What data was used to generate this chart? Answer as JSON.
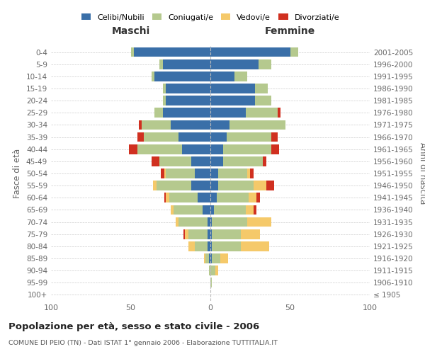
{
  "age_groups": [
    "100+",
    "95-99",
    "90-94",
    "85-89",
    "80-84",
    "75-79",
    "70-74",
    "65-69",
    "60-64",
    "55-59",
    "50-54",
    "45-49",
    "40-44",
    "35-39",
    "30-34",
    "25-29",
    "20-24",
    "15-19",
    "10-14",
    "5-9",
    "0-4"
  ],
  "birth_years": [
    "≤ 1905",
    "1906-1910",
    "1911-1915",
    "1916-1920",
    "1921-1925",
    "1926-1930",
    "1931-1935",
    "1936-1940",
    "1941-1945",
    "1946-1950",
    "1951-1955",
    "1956-1960",
    "1961-1965",
    "1966-1970",
    "1971-1975",
    "1976-1980",
    "1981-1985",
    "1986-1990",
    "1991-1995",
    "1996-2000",
    "2001-2005"
  ],
  "male": {
    "celibe": [
      0,
      0,
      0,
      1,
      2,
      2,
      2,
      5,
      8,
      12,
      10,
      12,
      18,
      20,
      25,
      30,
      28,
      28,
      35,
      30,
      48
    ],
    "coniugato": [
      0,
      0,
      1,
      2,
      8,
      12,
      18,
      18,
      18,
      22,
      18,
      20,
      28,
      22,
      18,
      5,
      2,
      2,
      2,
      2,
      2
    ],
    "vedovo": [
      0,
      0,
      0,
      1,
      4,
      2,
      2,
      2,
      2,
      2,
      1,
      0,
      0,
      0,
      0,
      0,
      0,
      0,
      0,
      0,
      0
    ],
    "divorziato": [
      0,
      0,
      0,
      0,
      0,
      1,
      0,
      0,
      1,
      0,
      2,
      5,
      5,
      4,
      2,
      0,
      0,
      0,
      0,
      0,
      0
    ]
  },
  "female": {
    "celibe": [
      0,
      0,
      0,
      1,
      1,
      1,
      1,
      2,
      4,
      5,
      5,
      8,
      8,
      10,
      12,
      22,
      28,
      28,
      15,
      30,
      50
    ],
    "coniugato": [
      0,
      1,
      3,
      5,
      18,
      18,
      22,
      20,
      20,
      22,
      18,
      25,
      30,
      28,
      35,
      20,
      10,
      8,
      8,
      8,
      5
    ],
    "vedovo": [
      0,
      0,
      2,
      5,
      18,
      12,
      15,
      5,
      5,
      8,
      2,
      0,
      0,
      0,
      0,
      0,
      0,
      0,
      0,
      0,
      0
    ],
    "divorziato": [
      0,
      0,
      0,
      0,
      0,
      0,
      0,
      2,
      2,
      5,
      2,
      2,
      5,
      4,
      0,
      2,
      0,
      0,
      0,
      0,
      0
    ]
  },
  "colors": {
    "celibe": "#3a6fa8",
    "coniugato": "#b5c98e",
    "vedovo": "#f5c96a",
    "divorziato": "#d03020"
  },
  "legend_labels": [
    "Celibi/Nubili",
    "Coniugati/e",
    "Vedovi/e",
    "Divorziati/e"
  ],
  "title": "Popolazione per età, sesso e stato civile - 2006",
  "subtitle": "COMUNE DI PEIO (TN) - Dati ISTAT 1° gennaio 2006 - Elaborazione TUTTITALIA.IT",
  "label_maschi": "Maschi",
  "label_femmine": "Femmine",
  "ylabel_left": "Fasce di età",
  "ylabel_right": "Anni di nascita",
  "xlim": 100,
  "background_color": "#ffffff",
  "grid_color": "#cccccc",
  "bar_height": 0.8
}
